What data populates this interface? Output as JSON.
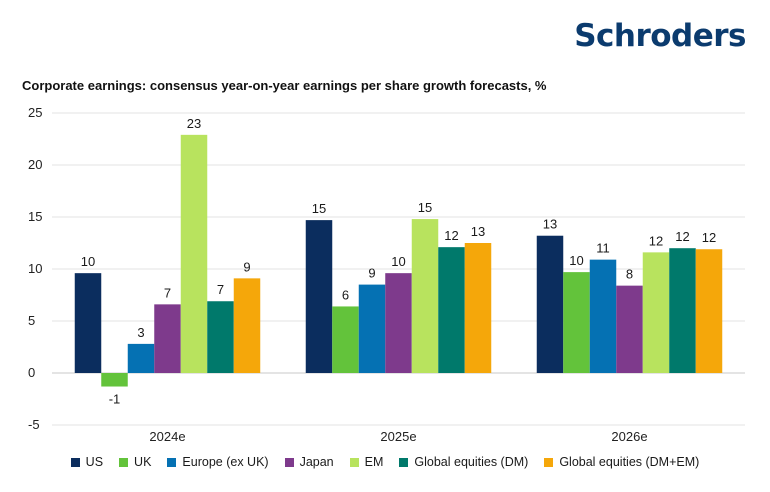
{
  "brand": {
    "logo_text": "Schroders"
  },
  "chart_data": {
    "type": "bar",
    "title": "Corporate earnings: consensus year-on-year earnings per share growth forecasts, %",
    "categories": [
      "2024e",
      "2025e",
      "2026e"
    ],
    "ylim": [
      -5,
      25
    ],
    "yticks": [
      25,
      20,
      15,
      10,
      5,
      0,
      -5
    ],
    "grid": true,
    "legend_position": "bottom",
    "series": [
      {
        "name": "US",
        "color": "#0b2d5e",
        "values": [
          9.6,
          14.7,
          13.2
        ],
        "labels": [
          "10",
          "15",
          "13"
        ]
      },
      {
        "name": "UK",
        "color": "#63c33b",
        "values": [
          -1.3,
          6.4,
          9.7
        ],
        "labels": [
          "-1",
          "6",
          "10"
        ]
      },
      {
        "name": "Europe (ex UK)",
        "color": "#0571b3",
        "values": [
          2.8,
          8.5,
          10.9
        ],
        "labels": [
          "3",
          "9",
          "11"
        ]
      },
      {
        "name": "Japan",
        "color": "#7e3a8c",
        "values": [
          6.6,
          9.6,
          8.4
        ],
        "labels": [
          "7",
          "10",
          "8"
        ]
      },
      {
        "name": "EM",
        "color": "#b8e35e",
        "values": [
          22.9,
          14.8,
          11.6
        ],
        "labels": [
          "23",
          "15",
          "12"
        ]
      },
      {
        "name": "Global equities (DM)",
        "color": "#00796b",
        "values": [
          6.9,
          12.1,
          12.0
        ],
        "labels": [
          "7",
          "12",
          "12"
        ]
      },
      {
        "name": "Global equities (DM+EM)",
        "color": "#f5a70a",
        "values": [
          9.1,
          12.5,
          11.9
        ],
        "labels": [
          "9",
          "13",
          "12"
        ]
      }
    ]
  }
}
